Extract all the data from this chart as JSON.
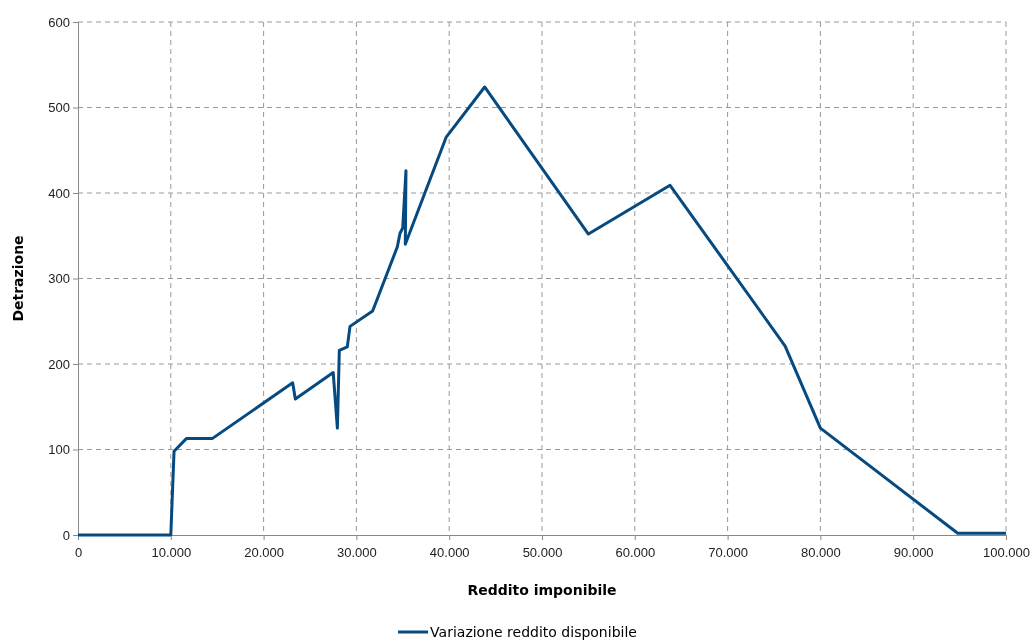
{
  "chart_data": {
    "type": "line",
    "xlabel": "Reddito imponibile",
    "ylabel": "Detrazione",
    "x": [
      0,
      10000,
      10350,
      11700,
      14500,
      23130,
      23420,
      27500,
      27950,
      28160,
      29020,
      29310,
      31750,
      34410,
      34700,
      34990,
      35340,
      35270,
      39660,
      43820,
      55000,
      63800,
      76200,
      80000,
      94800,
      100000
    ],
    "series": [
      {
        "name": "Variazione reddito disponibile",
        "color": "#064a80",
        "values": [
          0,
          0,
          98,
          113,
          113,
          178,
          159,
          190,
          125,
          216,
          220,
          244,
          262,
          337,
          353,
          359,
          426,
          340,
          465,
          524,
          352,
          409,
          221,
          125,
          2,
          2
        ]
      }
    ],
    "xlim": [
      0,
      100000
    ],
    "xticks": [
      0,
      {
        "value": 10000,
        "label": "10.000"
      },
      {
        "value": 20000,
        "label": "20.000"
      },
      {
        "value": 30000,
        "label": "30.000"
      },
      {
        "value": 40000,
        "label": "40.000"
      },
      {
        "value": 50000,
        "label": "50.000"
      },
      {
        "value": 60000,
        "label": "60.000"
      },
      {
        "value": 70000,
        "label": "70.000"
      },
      {
        "value": 80000,
        "label": "80.000"
      },
      {
        "value": 90000,
        "label": "90.000"
      },
      {
        "value": 100000,
        "label": "100.000"
      }
    ],
    "ylim": [
      0,
      600
    ],
    "yticks": [
      0,
      100,
      200,
      300,
      400,
      500,
      600
    ],
    "grid": true,
    "legend": "bottom",
    "marker": "none",
    "line_style": "solid"
  }
}
